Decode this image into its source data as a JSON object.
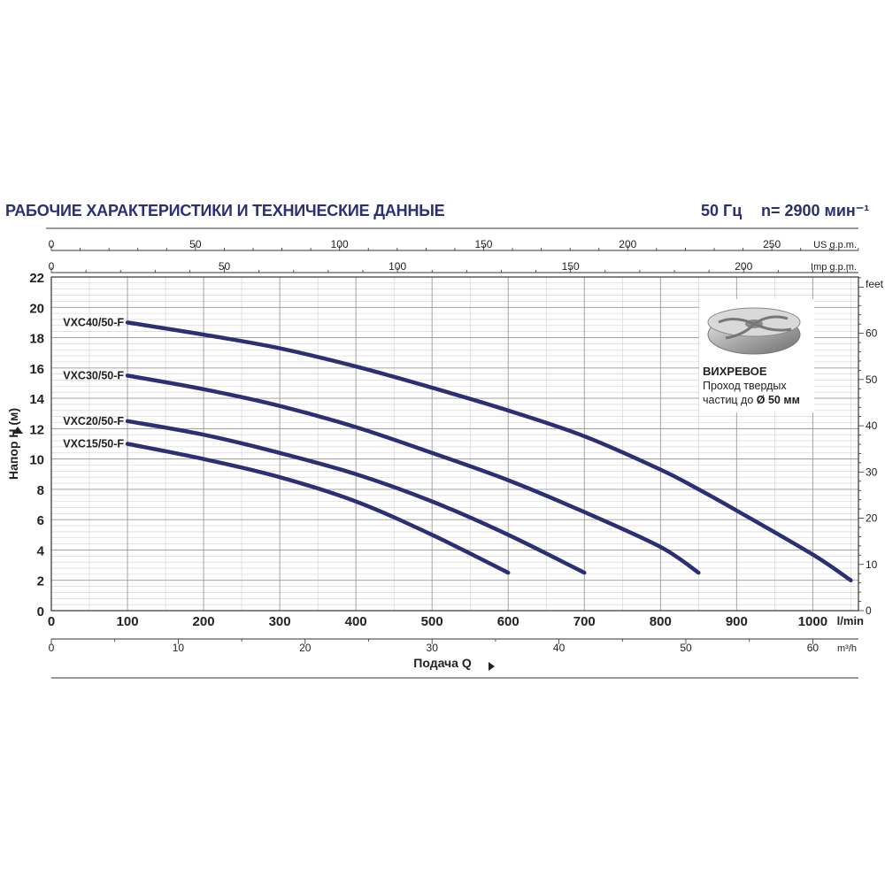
{
  "header": {
    "title": "РАБОЧИЕ ХАРАКТЕРИСТИКИ И ТЕХНИЧЕСКИЕ ДАННЫЕ",
    "frequency": "50 Гц",
    "speed": "n= 2900 мин⁻¹"
  },
  "impeller": {
    "title": "ВИХРЕВОЕ",
    "line1": "Проход твердых",
    "line2_prefix": "частиц до ",
    "line2_value": "Ø 50 мм"
  },
  "colors": {
    "curve": "#2b2f73",
    "grid_major": "#9a9a9a",
    "grid_minor": "#cfcfcf",
    "text": "#222222"
  },
  "chart_data": {
    "type": "line",
    "title": "",
    "ylabel": "Напор H (м)",
    "xlabel": "Подача Q",
    "x_unit": "l/min",
    "ylim": [
      0,
      22
    ],
    "xlim": [
      0,
      1060
    ],
    "y_ticks": [
      0,
      2,
      4,
      6,
      8,
      10,
      12,
      14,
      16,
      18,
      20,
      22
    ],
    "x_ticks": [
      0,
      100,
      200,
      300,
      400,
      500,
      600,
      700,
      800,
      900,
      1000
    ],
    "top_axis_us": {
      "unit": "US g.p.m.",
      "ticks": [
        0,
        50,
        100,
        150,
        200,
        250
      ]
    },
    "top_axis_imp": {
      "unit": "Imp g.p.m.",
      "ticks": [
        0,
        50,
        100,
        150,
        200
      ]
    },
    "right_axis": {
      "unit": "feet",
      "ticks": [
        0,
        10,
        20,
        30,
        40,
        50,
        60
      ]
    },
    "bottom_axis_m3h": {
      "unit": "m³/h",
      "ticks": [
        0,
        10,
        20,
        30,
        40,
        50,
        60
      ]
    },
    "grid": true,
    "series": [
      {
        "name": "VXC40/50-F",
        "x": [
          100,
          200,
          300,
          400,
          500,
          600,
          700,
          800,
          850,
          900,
          1000,
          1050
        ],
        "y": [
          19.0,
          18.2,
          17.3,
          16.1,
          14.7,
          13.2,
          11.5,
          9.3,
          8.0,
          6.6,
          3.7,
          2.0
        ]
      },
      {
        "name": "VXC30/50-F",
        "x": [
          100,
          200,
          300,
          400,
          500,
          600,
          700,
          800,
          850
        ],
        "y": [
          15.5,
          14.6,
          13.5,
          12.1,
          10.4,
          8.6,
          6.5,
          4.2,
          2.5
        ]
      },
      {
        "name": "VXC20/50-F",
        "x": [
          100,
          200,
          300,
          400,
          500,
          600,
          700
        ],
        "y": [
          12.5,
          11.6,
          10.4,
          9.0,
          7.2,
          5.0,
          2.5
        ]
      },
      {
        "name": "VXC15/50-F",
        "x": [
          100,
          200,
          300,
          400,
          500,
          600
        ],
        "y": [
          11.0,
          10.0,
          8.8,
          7.2,
          5.0,
          2.5
        ]
      }
    ]
  }
}
